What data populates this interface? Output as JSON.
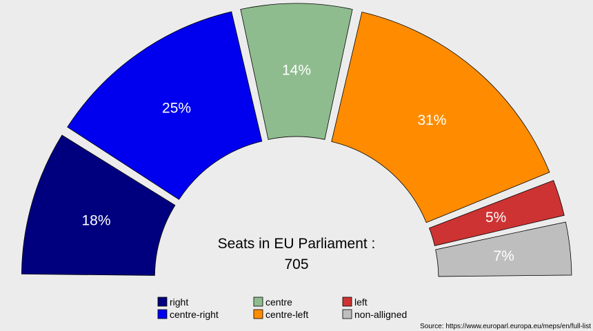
{
  "chart_data": {
    "type": "pie",
    "variant": "parliament-semicircle",
    "title_line1": "Seats in EU Parliament :",
    "total": "705",
    "slices": [
      {
        "name": "right",
        "value": 18,
        "label": "18%",
        "color": "#00007f"
      },
      {
        "name": "centre-right",
        "value": 25,
        "label": "25%",
        "color": "#0000ee"
      },
      {
        "name": "centre",
        "value": 14,
        "label": "14%",
        "color": "#8fbc8f"
      },
      {
        "name": "centre-left",
        "value": 31,
        "label": "31%",
        "color": "#ff8c00"
      },
      {
        "name": "left",
        "value": 5,
        "label": "5%",
        "color": "#cd3333"
      },
      {
        "name": "non-alligned",
        "value": 7,
        "label": "7%",
        "color": "#bebebe"
      }
    ],
    "legend": {
      "placement": "bottom",
      "items": [
        {
          "label": "right",
          "color": "#00007f"
        },
        {
          "label": "centre-right",
          "color": "#0000ee"
        },
        {
          "label": "centre",
          "color": "#8fbc8f"
        },
        {
          "label": "centre-left",
          "color": "#ff8c00"
        },
        {
          "label": "left",
          "color": "#cd3333"
        },
        {
          "label": "non-alligned",
          "color": "#bebebe"
        }
      ]
    },
    "source": "Source: https://www.europarl.europa.eu/meps/en/full-list"
  }
}
